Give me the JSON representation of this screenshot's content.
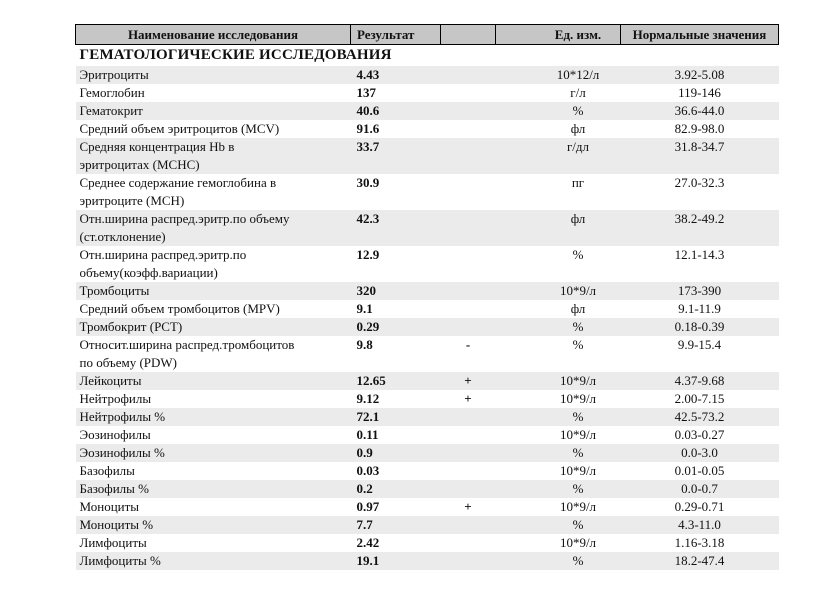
{
  "report": {
    "section_title": "ГЕМАТОЛОГИЧЕСКИЕ ИССЛЕДОВАНИЯ",
    "columns": {
      "name": "Наименование исследования",
      "result": "Результат",
      "flag": "",
      "unit": "Ед. изм.",
      "norm": "Нормальные значения"
    },
    "rows": [
      {
        "name": "Эритроциты",
        "result": "4.43",
        "flag": "",
        "unit": "10*12/л",
        "norm": "3.92-5.08"
      },
      {
        "name": "Гемоглобин",
        "result": "137",
        "flag": "",
        "unit": "г/л",
        "norm": "119-146"
      },
      {
        "name": "Гематокрит",
        "result": "40.6",
        "flag": "",
        "unit": "%",
        "norm": "36.6-44.0"
      },
      {
        "name": "Средний объем эритроцитов (MCV)",
        "result": "91.6",
        "flag": "",
        "unit": "фл",
        "norm": "82.9-98.0"
      },
      {
        "name": "Средняя концентрация Hb в\nэритроцитах (MCHC)",
        "result": "33.7",
        "flag": "",
        "unit": "г/дл",
        "norm": "31.8-34.7"
      },
      {
        "name": "Среднее содержание гемоглобина в\nэритроците (MCH)",
        "result": "30.9",
        "flag": "",
        "unit": "пг",
        "norm": "27.0-32.3"
      },
      {
        "name": "Отн.ширина распред.эритр.по объему\n(ст.отклонение)",
        "result": "42.3",
        "flag": "",
        "unit": "фл",
        "norm": "38.2-49.2"
      },
      {
        "name": "Отн.ширина распред.эритр.по\nобъему(коэфф.вариации)",
        "result": "12.9",
        "flag": "",
        "unit": "%",
        "norm": "12.1-14.3"
      },
      {
        "name": "Тромбоциты",
        "result": "320",
        "flag": "",
        "unit": "10*9/л",
        "norm": "173-390"
      },
      {
        "name": "Средний объем тромбоцитов (MPV)",
        "result": "9.1",
        "flag": "",
        "unit": "фл",
        "norm": "9.1-11.9"
      },
      {
        "name": "Тромбокрит (PCT)",
        "result": "0.29",
        "flag": "",
        "unit": "%",
        "norm": "0.18-0.39"
      },
      {
        "name": "Относит.ширина распред.тромбоцитов\nпо объему (PDW)",
        "result": "9.8",
        "flag": "-",
        "unit": "%",
        "norm": "9.9-15.4"
      },
      {
        "name": "Лейкоциты",
        "result": "12.65",
        "flag": "+",
        "unit": "10*9/л",
        "norm": "4.37-9.68"
      },
      {
        "name": "Нейтрофилы",
        "result": "9.12",
        "flag": "+",
        "unit": "10*9/л",
        "norm": "2.00-7.15"
      },
      {
        "name": "Нейтрофилы %",
        "result": "72.1",
        "flag": "",
        "unit": "%",
        "norm": "42.5-73.2"
      },
      {
        "name": "Эозинофилы",
        "result": "0.11",
        "flag": "",
        "unit": "10*9/л",
        "norm": "0.03-0.27"
      },
      {
        "name": "Эозинофилы %",
        "result": "0.9",
        "flag": "",
        "unit": "%",
        "norm": "0.0-3.0"
      },
      {
        "name": "Базофилы",
        "result": "0.03",
        "flag": "",
        "unit": "10*9/л",
        "norm": "0.01-0.05"
      },
      {
        "name": "Базофилы %",
        "result": "0.2",
        "flag": "",
        "unit": "%",
        "norm": "0.0-0.7"
      },
      {
        "name": "Моноциты",
        "result": "0.97",
        "flag": "+",
        "unit": "10*9/л",
        "norm": "0.29-0.71"
      },
      {
        "name": "Моноциты %",
        "result": "7.7",
        "flag": "",
        "unit": "%",
        "norm": "4.3-11.0"
      },
      {
        "name": "Лимфоциты",
        "result": "2.42",
        "flag": "",
        "unit": "10*9/л",
        "norm": "1.16-3.18"
      },
      {
        "name": "Лимфоциты %",
        "result": "19.1",
        "flag": "",
        "unit": "%",
        "norm": "18.2-47.4"
      }
    ]
  },
  "colors": {
    "header_bg": "#c6c6c6",
    "stripe_bg": "#ebebeb",
    "border": "#000000",
    "text": "#111111",
    "page_bg": "#ffffff"
  }
}
